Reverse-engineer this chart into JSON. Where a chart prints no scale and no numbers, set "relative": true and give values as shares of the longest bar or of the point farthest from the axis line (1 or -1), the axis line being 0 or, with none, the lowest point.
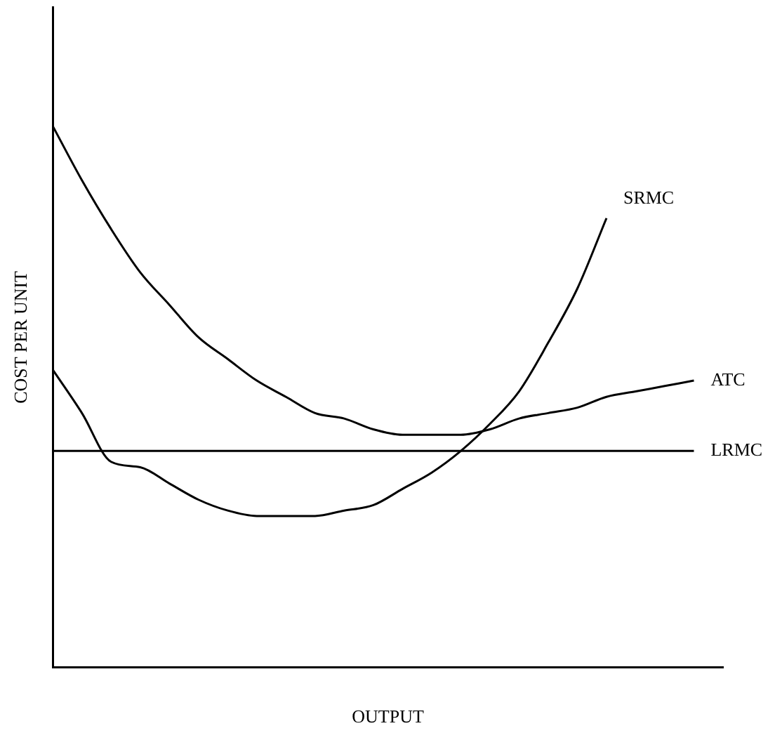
{
  "chart_data": {
    "type": "line",
    "relative": true,
    "xlabel": "OUTPUT",
    "ylabel": "COST PER UNIT",
    "categories": [
      null,
      null,
      null,
      null,
      null,
      null,
      null,
      null,
      null,
      null,
      null,
      null,
      null,
      null,
      null,
      null,
      null,
      null,
      null,
      null,
      null,
      null,
      null,
      null
    ],
    "series": [
      {
        "name": "SRMC",
        "color": "#000000",
        "values": [
          0.55,
          0.47,
          0.38,
          0.37,
          0.34,
          0.31,
          0.29,
          0.28,
          0.28,
          0.28,
          0.29,
          0.3,
          0.33,
          0.36,
          0.4,
          0.45,
          0.51,
          0.6,
          0.7,
          0.83,
          null,
          null,
          null,
          null
        ]
      },
      {
        "name": "ATC",
        "color": "#000000",
        "values": [
          1.0,
          0.9,
          0.81,
          0.73,
          0.67,
          0.61,
          0.57,
          0.53,
          0.5,
          0.47,
          0.46,
          0.44,
          0.43,
          0.43,
          0.43,
          0.44,
          0.46,
          0.47,
          0.48,
          0.5,
          0.51,
          0.52,
          0.53,
          null
        ]
      },
      {
        "name": "LRMC",
        "color": "#000000",
        "values": [
          0.4,
          0.4,
          0.4,
          0.4,
          0.4,
          0.4,
          0.4,
          0.4,
          0.4,
          0.4,
          0.4,
          0.4,
          0.4,
          0.4,
          0.4,
          0.4,
          0.4,
          0.4,
          0.4,
          0.4,
          0.4,
          0.4,
          0.4,
          null
        ]
      }
    ],
    "grid": false,
    "legend": false,
    "marker": "none",
    "line_style": "solid"
  }
}
